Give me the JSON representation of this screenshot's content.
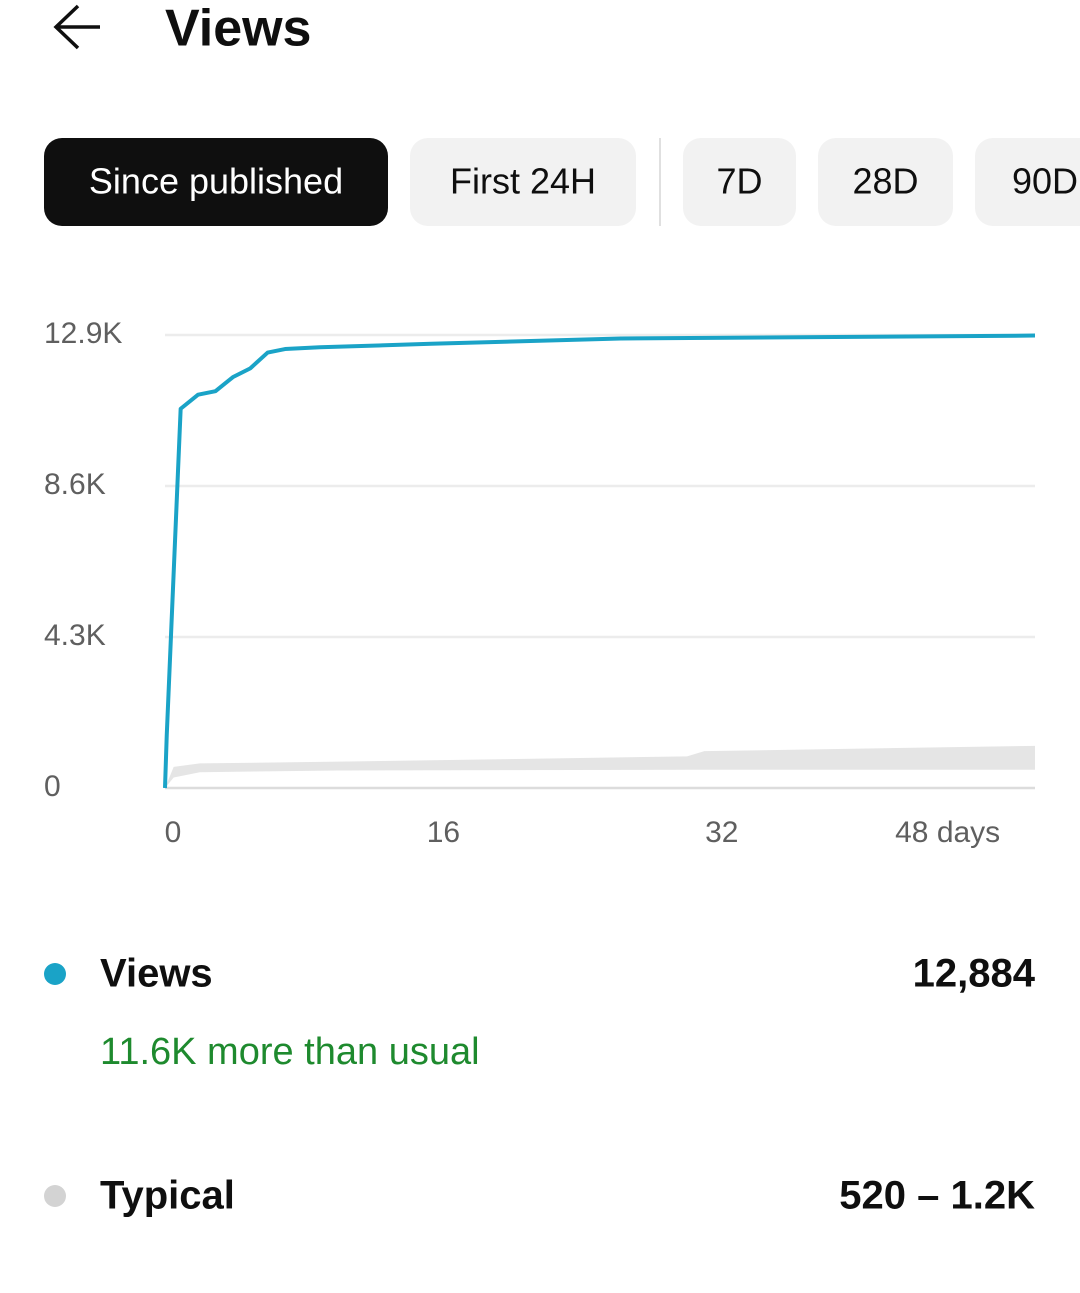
{
  "header": {
    "title": "Views"
  },
  "tabs": [
    "Since published",
    "First 24H",
    "7D",
    "28D",
    "90D"
  ],
  "chart_data": {
    "type": "line",
    "xlim": [
      0,
      50
    ],
    "xticks": [
      0,
      16,
      32,
      {
        "value": 48,
        "label": "48 days"
      }
    ],
    "ylim": [
      0,
      12900
    ],
    "yticks": [
      0,
      {
        "value": 4300,
        "label": "4.3K"
      },
      {
        "value": 8600,
        "label": "8.6K"
      },
      {
        "value": 12900,
        "label": "12.9K"
      }
    ],
    "grid": true,
    "series": [
      {
        "name": "Views",
        "color": "#1aa3c7",
        "x": [
          0,
          0.1,
          0.9,
          1.9,
          2.9,
          3.9,
          4.9,
          5.9,
          6.9,
          8.9,
          15.3,
          26.2,
          50
        ],
        "values": [
          0,
          1500,
          10800,
          11200,
          11300,
          11700,
          11950,
          12400,
          12500,
          12550,
          12650,
          12800,
          12884
        ]
      }
    ],
    "band": {
      "color": "#e5e5e5",
      "x": [
        0,
        0.5,
        2,
        10,
        30,
        31,
        50
      ],
      "low": [
        0,
        300,
        450,
        500,
        520,
        520,
        520
      ],
      "high": [
        0,
        600,
        700,
        750,
        900,
        1050,
        1200
      ]
    }
  },
  "summary": [
    {
      "label": "Views",
      "value": "12,884",
      "note": "11.6K more than usual",
      "color": "#1aa3c7"
    },
    {
      "label": "Typical",
      "value": "520 – 1.2K",
      "color": "#d3d3d3"
    }
  ]
}
